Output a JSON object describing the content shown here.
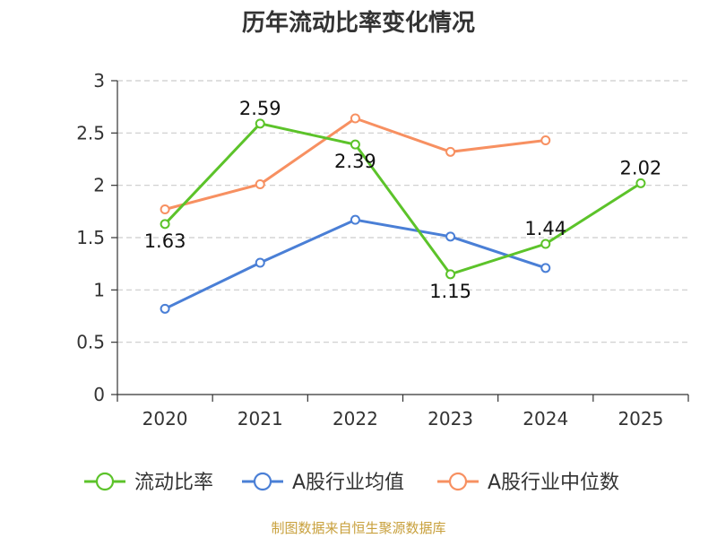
{
  "chart_data": {
    "type": "line",
    "title": "历年流动比率变化情况",
    "categories": [
      "2020",
      "2021",
      "2022",
      "2023",
      "2024",
      "2025"
    ],
    "y_ticks": [
      "0",
      "0.5",
      "1",
      "1.5",
      "2",
      "2.5",
      "3"
    ],
    "ylim": [
      0,
      3
    ],
    "grid": true,
    "legend_position": "bottom",
    "series": [
      {
        "name": "流动比率",
        "color": "#5cc32a",
        "values": [
          1.63,
          2.59,
          2.39,
          1.15,
          1.44,
          2.02
        ],
        "labels": [
          "1.63",
          "2.59",
          "2.39",
          "1.15",
          "1.44",
          "2.02"
        ]
      },
      {
        "name": "A股行业均值",
        "color": "#4a7fd6",
        "values": [
          0.82,
          1.26,
          1.67,
          1.51,
          1.21,
          null
        ]
      },
      {
        "name": "A股行业中位数",
        "color": "#f79061",
        "values": [
          1.77,
          2.01,
          2.64,
          2.32,
          2.43,
          null
        ]
      }
    ],
    "source": "制图数据来自恒生聚源数据库"
  }
}
